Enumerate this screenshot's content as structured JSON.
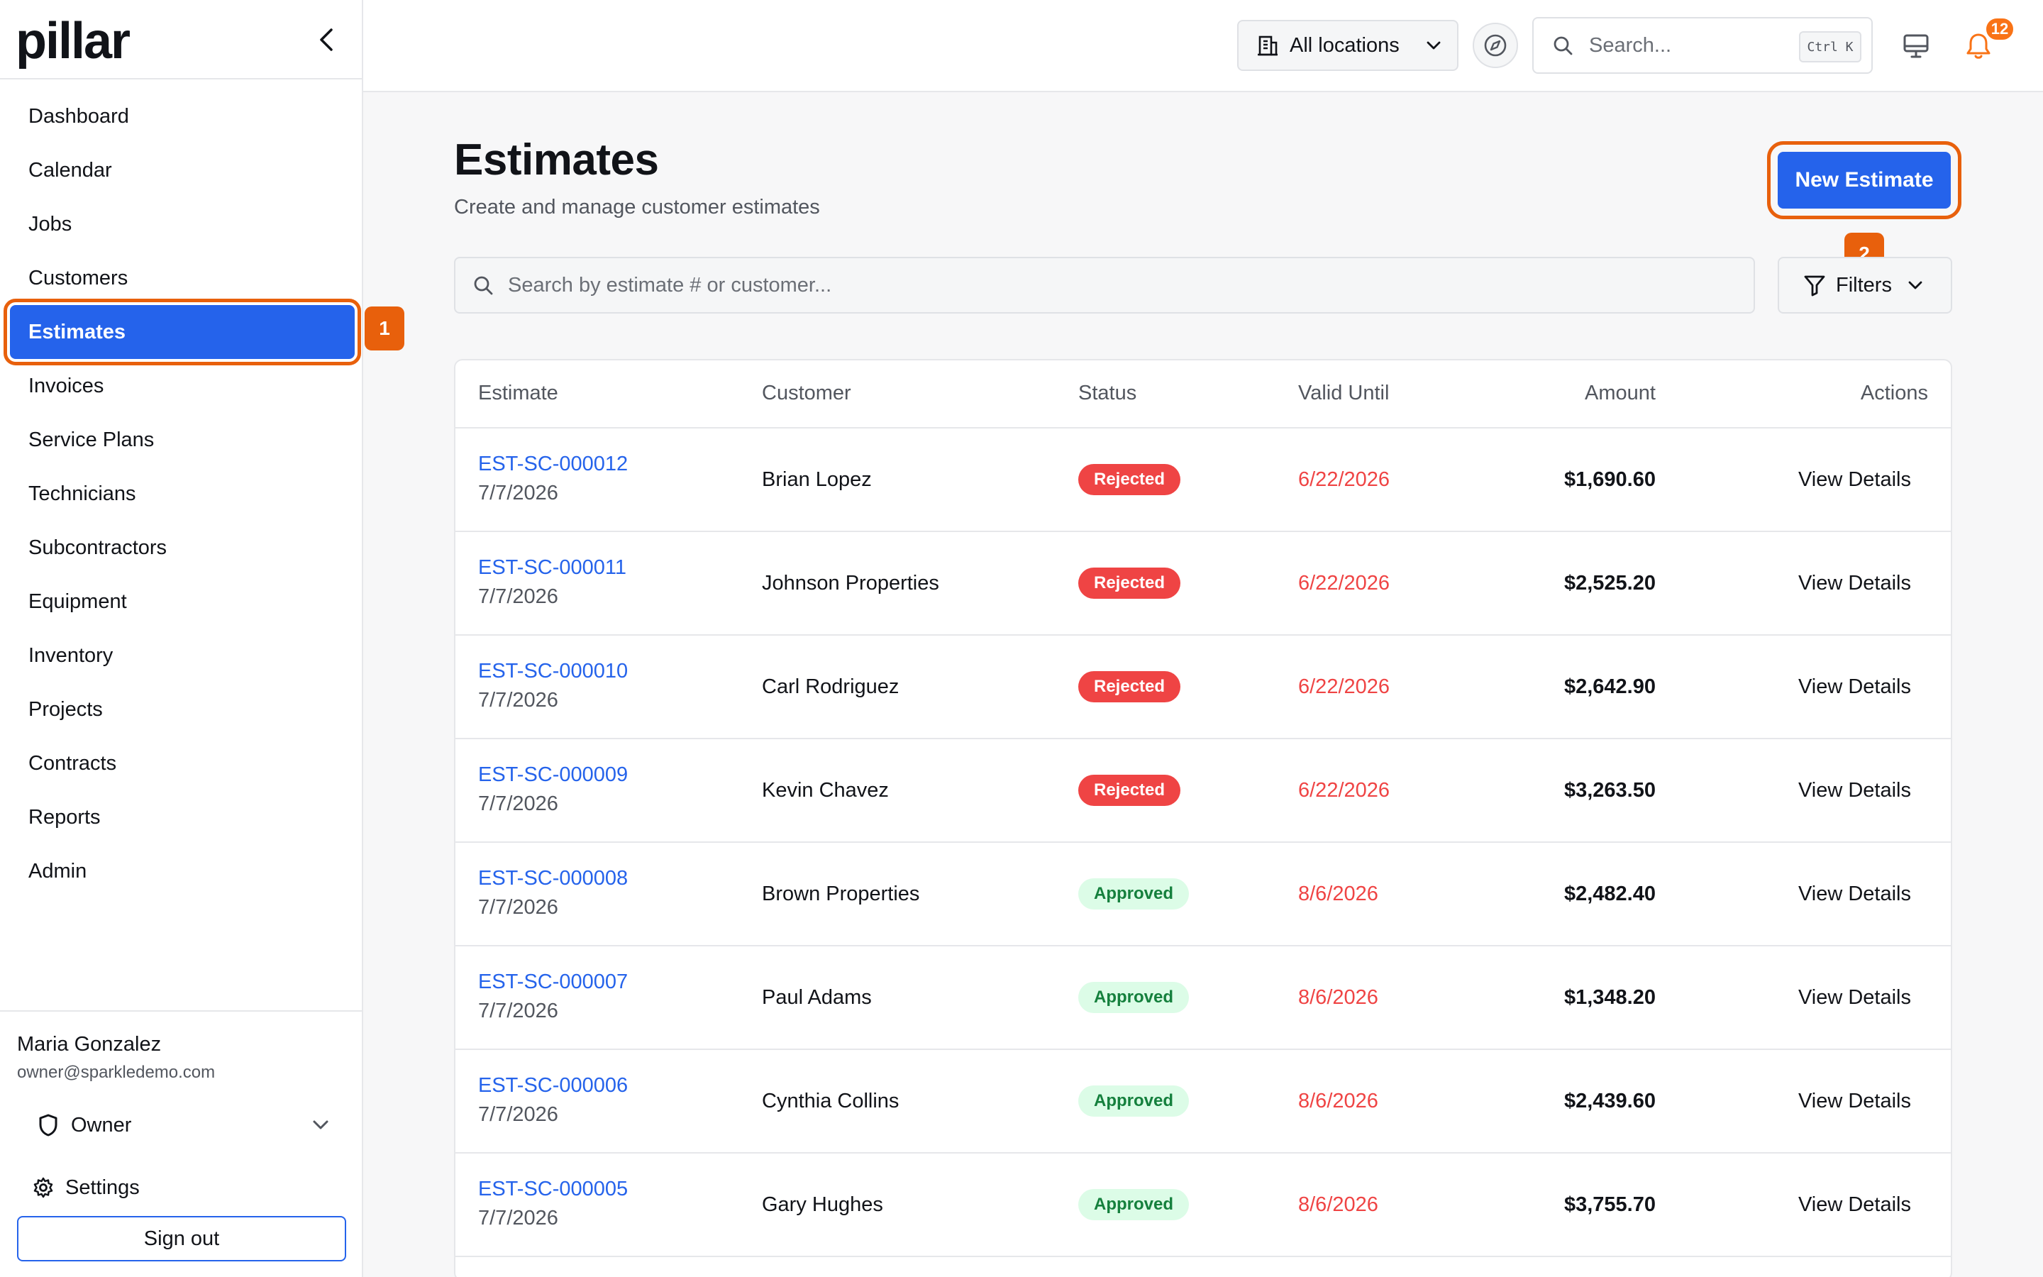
{
  "app": {
    "logo": "pillar"
  },
  "sidebar": {
    "items": [
      {
        "label": "Dashboard"
      },
      {
        "label": "Calendar"
      },
      {
        "label": "Jobs"
      },
      {
        "label": "Customers"
      },
      {
        "label": "Estimates",
        "active": true
      },
      {
        "label": "Invoices"
      },
      {
        "label": "Service Plans"
      },
      {
        "label": "Technicians"
      },
      {
        "label": "Subcontractors"
      },
      {
        "label": "Equipment"
      },
      {
        "label": "Inventory"
      },
      {
        "label": "Projects"
      },
      {
        "label": "Contracts"
      },
      {
        "label": "Reports"
      },
      {
        "label": "Admin"
      }
    ],
    "user": {
      "name": "Maria Gonzalez",
      "email": "owner@sparkledemo.com"
    },
    "role": "Owner",
    "settings_label": "Settings",
    "signout_label": "Sign out"
  },
  "callouts": {
    "first": "1",
    "second": "2"
  },
  "topbar": {
    "location": "All locations",
    "search_placeholder": "Search...",
    "shortcut": "Ctrl K",
    "notification_count": "12"
  },
  "page": {
    "title": "Estimates",
    "subtitle": "Create and manage customer estimates",
    "new_button": "New Estimate",
    "search_placeholder": "Search by estimate # or customer...",
    "filters_label": "Filters"
  },
  "table": {
    "headers": {
      "estimate": "Estimate",
      "customer": "Customer",
      "status": "Status",
      "valid_until": "Valid Until",
      "amount": "Amount",
      "actions": "Actions"
    },
    "rows": [
      {
        "id": "EST-SC-000012",
        "date": "7/7/2026",
        "customer": "Brian Lopez",
        "status": "Rejected",
        "valid_until": "6/22/2026",
        "amount": "$1,690.60",
        "action": "View Details"
      },
      {
        "id": "EST-SC-000011",
        "date": "7/7/2026",
        "customer": "Johnson Properties",
        "status": "Rejected",
        "valid_until": "6/22/2026",
        "amount": "$2,525.20",
        "action": "View Details"
      },
      {
        "id": "EST-SC-000010",
        "date": "7/7/2026",
        "customer": "Carl Rodriguez",
        "status": "Rejected",
        "valid_until": "6/22/2026",
        "amount": "$2,642.90",
        "action": "View Details"
      },
      {
        "id": "EST-SC-000009",
        "date": "7/7/2026",
        "customer": "Kevin Chavez",
        "status": "Rejected",
        "valid_until": "6/22/2026",
        "amount": "$3,263.50",
        "action": "View Details"
      },
      {
        "id": "EST-SC-000008",
        "date": "7/7/2026",
        "customer": "Brown Properties",
        "status": "Approved",
        "valid_until": "8/6/2026",
        "amount": "$2,482.40",
        "action": "View Details"
      },
      {
        "id": "EST-SC-000007",
        "date": "7/7/2026",
        "customer": "Paul Adams",
        "status": "Approved",
        "valid_until": "8/6/2026",
        "amount": "$1,348.20",
        "action": "View Details"
      },
      {
        "id": "EST-SC-000006",
        "date": "7/7/2026",
        "customer": "Cynthia Collins",
        "status": "Approved",
        "valid_until": "8/6/2026",
        "amount": "$2,439.60",
        "action": "View Details"
      },
      {
        "id": "EST-SC-000005",
        "date": "7/7/2026",
        "customer": "Gary Hughes",
        "status": "Approved",
        "valid_until": "8/6/2026",
        "amount": "$3,755.70",
        "action": "View Details"
      }
    ]
  },
  "colors": {
    "accent": "#2563eb",
    "callout": "#e8600c",
    "rejected": "#ef4444",
    "approved_bg": "#dcfce7",
    "approved_text": "#15803d",
    "badge": "#f97316"
  }
}
